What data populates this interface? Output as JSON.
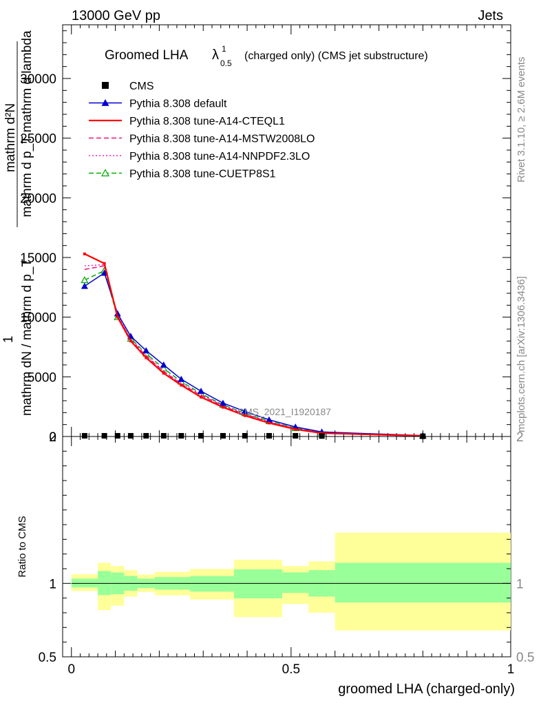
{
  "header": {
    "left": "13000 GeV pp",
    "right": "Jets"
  },
  "right_labels": {
    "rivet": "Rivet 3.1.10, ≥ 2.6M events",
    "mcplots": "mcplots.cern.ch [arXiv:1306.3436]"
  },
  "main_title": {
    "prefix": "Groomed LHA",
    "lambda": "λ",
    "sup": "1",
    "sub": "0.5",
    "suffix": "(charged only) (CMS jet substructure)"
  },
  "analysis_id": "CMS_2021_I1920187",
  "ylabel_top": {
    "one": "1",
    "numerator": "mathrm d²N",
    "denominator": "mathrm d p_T mathrm d lambda",
    "line2": "mathrm dN / mathrm d p_T"
  },
  "xlabel": "groomed LHA (charged-only)",
  "ratio_ylabel": "Ratio to CMS",
  "colors": {
    "cms": "#000000",
    "default": "#0000cc",
    "cteql1": "#ff0000",
    "mstw": "#ee1177",
    "nnpdf": "#ee22cc",
    "cuetp8s1": "#00aa00",
    "band_outer": "#ffff99",
    "band_inner": "#99ff99"
  },
  "chart_data": [
    {
      "type": "line",
      "title": "Groomed LHA λ^1_0.5 (charged only) (CMS jet substructure)",
      "xlim": [
        -0.02,
        1.0
      ],
      "ylim": [
        0,
        34500
      ],
      "y_ticks": [
        0,
        5000,
        10000,
        15000,
        20000,
        25000,
        30000
      ],
      "y_tick_labels": [
        "0",
        "5000",
        "10000",
        "15000",
        "20000",
        "25000",
        "30000"
      ],
      "x": [
        0.03,
        0.075,
        0.105,
        0.135,
        0.17,
        0.21,
        0.25,
        0.295,
        0.345,
        0.395,
        0.45,
        0.51,
        0.57,
        0.8
      ],
      "series": [
        {
          "name": "CMS",
          "key": "cms",
          "marker": "square",
          "style": "none",
          "values": [
            60,
            60,
            60,
            60,
            60,
            60,
            60,
            60,
            60,
            60,
            60,
            60,
            40,
            20
          ]
        },
        {
          "name": "Pythia 8.308 default",
          "key": "default",
          "marker": "triangle",
          "style": "solid",
          "values": [
            12600,
            13700,
            10300,
            8400,
            7200,
            6000,
            4800,
            3800,
            2800,
            2100,
            1400,
            800,
            380,
            80
          ]
        },
        {
          "name": "Pythia 8.308 tune-A14-CTEQL1",
          "key": "cteql1",
          "marker": "none",
          "style": "solid",
          "values": [
            15300,
            14500,
            10000,
            8000,
            6600,
            5300,
            4300,
            3300,
            2450,
            1750,
            1130,
            600,
            280,
            50
          ]
        },
        {
          "name": "Pythia 8.308 tune-A14-MSTW2008LO",
          "key": "mstw",
          "marker": "none",
          "style": "dashed",
          "values": [
            14000,
            14300,
            10100,
            8100,
            6750,
            5450,
            4400,
            3450,
            2550,
            1850,
            1200,
            650,
            310,
            60
          ]
        },
        {
          "name": "Pythia 8.308 tune-A14-NNPDF2.3LO",
          "key": "nnpdf",
          "marker": "none",
          "style": "dotted",
          "values": [
            14300,
            14400,
            10150,
            8150,
            6800,
            5500,
            4450,
            3500,
            2600,
            1900,
            1230,
            670,
            320,
            60
          ]
        },
        {
          "name": "Pythia 8.308 tune-CUETP8S1",
          "key": "cuetp8s1",
          "marker": "open-triangle",
          "style": "dashed",
          "values": [
            13100,
            13900,
            10000,
            8200,
            6950,
            5700,
            4600,
            3600,
            2650,
            1950,
            1280,
            700,
            330,
            60
          ]
        }
      ]
    },
    {
      "type": "area",
      "ylabel": "Ratio to CMS",
      "xlabel": "groomed LHA (charged-only)",
      "xlim": [
        -0.02,
        1.0
      ],
      "ylim": [
        0.5,
        2.0
      ],
      "x_ticks": [
        0,
        0.5,
        1
      ],
      "x_tick_labels": [
        "0",
        "0.5",
        "1"
      ],
      "y_ticks": [
        0.5,
        1,
        2
      ],
      "y_tick_labels": [
        "0.5",
        "1",
        "2"
      ],
      "bins": [
        {
          "x0": 0.0,
          "x1": 0.06,
          "outer": [
            0.948,
            1.062
          ],
          "inner": [
            0.972,
            1.032
          ]
        },
        {
          "x0": 0.06,
          "x1": 0.09,
          "outer": [
            0.818,
            1.14
          ],
          "inner": [
            0.92,
            1.084
          ]
        },
        {
          "x0": 0.09,
          "x1": 0.12,
          "outer": [
            0.848,
            1.118
          ],
          "inner": [
            0.926,
            1.074
          ]
        },
        {
          "x0": 0.12,
          "x1": 0.15,
          "outer": [
            0.91,
            1.09
          ],
          "inner": [
            0.95,
            1.05
          ]
        },
        {
          "x0": 0.15,
          "x1": 0.19,
          "outer": [
            0.942,
            1.06
          ],
          "inner": [
            0.968,
            1.032
          ]
        },
        {
          "x0": 0.19,
          "x1": 0.27,
          "outer": [
            0.918,
            1.078
          ],
          "inner": [
            0.957,
            1.043
          ]
        },
        {
          "x0": 0.27,
          "x1": 0.37,
          "outer": [
            0.89,
            1.098
          ],
          "inner": [
            0.944,
            1.05
          ]
        },
        {
          "x0": 0.37,
          "x1": 0.48,
          "outer": [
            0.77,
            1.16
          ],
          "inner": [
            0.898,
            1.095
          ]
        },
        {
          "x0": 0.48,
          "x1": 0.54,
          "outer": [
            0.86,
            1.118
          ],
          "inner": [
            0.935,
            1.075
          ]
        },
        {
          "x0": 0.54,
          "x1": 0.6,
          "outer": [
            0.8,
            1.15
          ],
          "inner": [
            0.91,
            1.09
          ]
        },
        {
          "x0": 0.6,
          "x1": 1.0,
          "outer": [
            0.68,
            1.345
          ],
          "inner": [
            0.87,
            1.14
          ]
        }
      ]
    }
  ]
}
